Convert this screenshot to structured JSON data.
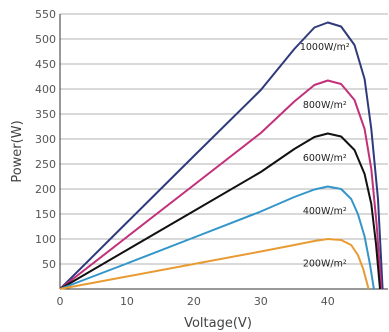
{
  "chart_data": {
    "type": "line",
    "xlabel": "Voltage(V)",
    "ylabel": "Power(W)",
    "xlim": [
      0,
      49
    ],
    "ylim": [
      0,
      550
    ],
    "x_ticks": [
      0,
      10,
      20,
      30,
      40
    ],
    "y_ticks": [
      50,
      100,
      150,
      200,
      250,
      300,
      350,
      400,
      450,
      500,
      550
    ],
    "grid": "horizontal",
    "series": [
      {
        "name": "1000W/m²",
        "color": "#2e3a7c",
        "points": [
          [
            0,
            0
          ],
          [
            10,
            133
          ],
          [
            20,
            266
          ],
          [
            30,
            398
          ],
          [
            35,
            480
          ],
          [
            38,
            523
          ],
          [
            40,
            533
          ],
          [
            42,
            525
          ],
          [
            44,
            488
          ],
          [
            45.5,
            420
          ],
          [
            46.5,
            320
          ],
          [
            47.5,
            180
          ],
          [
            48.2,
            0
          ]
        ]
      },
      {
        "name": "800W/m²",
        "color": "#c2307a",
        "points": [
          [
            0,
            0
          ],
          [
            10,
            104
          ],
          [
            20,
            208
          ],
          [
            30,
            312
          ],
          [
            35,
            375
          ],
          [
            38,
            408
          ],
          [
            40,
            417
          ],
          [
            42,
            410
          ],
          [
            44,
            378
          ],
          [
            45.5,
            320
          ],
          [
            46.5,
            240
          ],
          [
            47.3,
            130
          ],
          [
            48,
            0
          ]
        ]
      },
      {
        "name": "600W/m²",
        "color": "#111111",
        "points": [
          [
            0,
            0
          ],
          [
            10,
            78
          ],
          [
            20,
            156
          ],
          [
            30,
            234
          ],
          [
            35,
            280
          ],
          [
            38,
            304
          ],
          [
            40,
            311
          ],
          [
            42,
            305
          ],
          [
            44,
            278
          ],
          [
            45.5,
            230
          ],
          [
            46.5,
            170
          ],
          [
            47.2,
            90
          ],
          [
            47.8,
            0
          ]
        ]
      },
      {
        "name": "400W/m²",
        "color": "#3496c8",
        "points": [
          [
            0,
            0
          ],
          [
            10,
            51
          ],
          [
            20,
            103
          ],
          [
            30,
            155
          ],
          [
            35,
            184
          ],
          [
            38,
            199
          ],
          [
            40,
            205
          ],
          [
            42,
            200
          ],
          [
            43.5,
            180
          ],
          [
            44.5,
            150
          ],
          [
            45.5,
            105
          ],
          [
            46.3,
            50
          ],
          [
            46.9,
            0
          ]
        ]
      },
      {
        "name": "200W/m²",
        "color": "#e89b33",
        "points": [
          [
            0,
            0
          ],
          [
            10,
            25
          ],
          [
            20,
            50
          ],
          [
            30,
            75
          ],
          [
            35,
            88
          ],
          [
            38,
            96
          ],
          [
            40,
            100
          ],
          [
            42,
            98
          ],
          [
            43.5,
            88
          ],
          [
            44.5,
            68
          ],
          [
            45.3,
            40
          ],
          [
            45.8,
            15
          ],
          [
            46.1,
            0
          ]
        ]
      }
    ]
  }
}
